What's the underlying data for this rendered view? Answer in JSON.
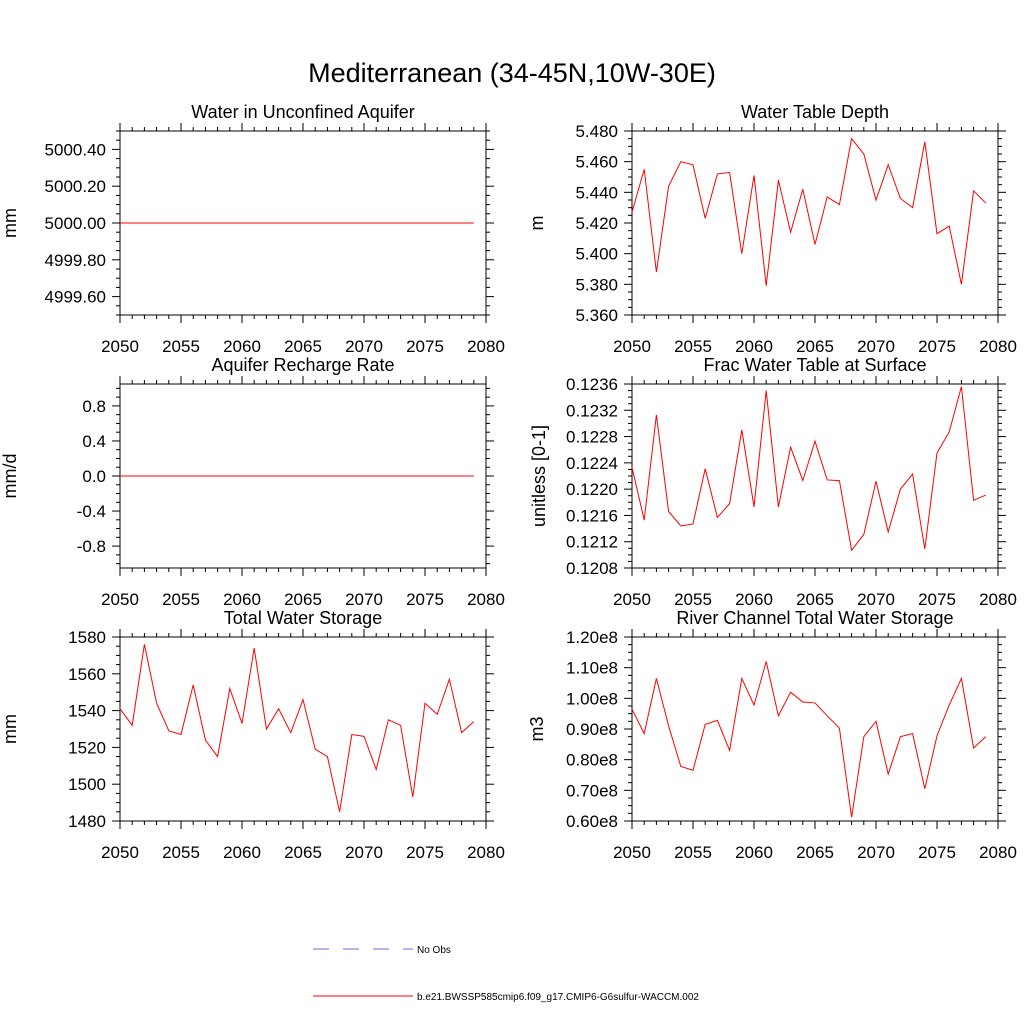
{
  "figure_title": "Mediterranean (34-45N,10W-30E)",
  "colors": {
    "model": "#ff0000",
    "obs": "#6a6acd",
    "axis": "#000000"
  },
  "legend": {
    "obs_label": "No Obs",
    "model_label": "b.e21.BWSSP585cmip6.f09_g17.CMIP6-G6sulfur-WACCM.002"
  },
  "chart_data": [
    {
      "type": "line",
      "title": "Water in Unconfined Aquifer",
      "ylabel": "mm",
      "xlim": [
        2050,
        2080
      ],
      "ylim": [
        4999.5,
        5000.5
      ],
      "xticks": [
        2050,
        2055,
        2060,
        2065,
        2070,
        2075,
        2080
      ],
      "yticks": [
        4999.6,
        4999.8,
        5000.0,
        5000.2,
        5000.4
      ],
      "ytick_labels": [
        "4999.60",
        "4999.80",
        "5000.00",
        "5000.20",
        "5000.40"
      ],
      "x": [
        2050,
        2051,
        2052,
        2053,
        2054,
        2055,
        2056,
        2057,
        2058,
        2059,
        2060,
        2061,
        2062,
        2063,
        2064,
        2065,
        2066,
        2067,
        2068,
        2069,
        2070,
        2071,
        2072,
        2073,
        2074,
        2075,
        2076,
        2077,
        2078,
        2079
      ],
      "series": [
        {
          "values": [
            5000,
            5000,
            5000,
            5000,
            5000,
            5000,
            5000,
            5000,
            5000,
            5000,
            5000,
            5000,
            5000,
            5000,
            5000,
            5000,
            5000,
            5000,
            5000,
            5000,
            5000,
            5000,
            5000,
            5000,
            5000,
            5000,
            5000,
            5000,
            5000,
            5000
          ]
        }
      ]
    },
    {
      "type": "line",
      "title": "Water Table Depth",
      "ylabel": "m",
      "xlim": [
        2050,
        2080
      ],
      "ylim": [
        5.36,
        5.48
      ],
      "xticks": [
        2050,
        2055,
        2060,
        2065,
        2070,
        2075,
        2080
      ],
      "yticks": [
        5.36,
        5.38,
        5.4,
        5.42,
        5.44,
        5.46,
        5.48
      ],
      "ytick_labels": [
        "5.360",
        "5.380",
        "5.400",
        "5.420",
        "5.440",
        "5.460",
        "5.480"
      ],
      "x": [
        2050,
        2051,
        2052,
        2053,
        2054,
        2055,
        2056,
        2057,
        2058,
        2059,
        2060,
        2061,
        2062,
        2063,
        2064,
        2065,
        2066,
        2067,
        2068,
        2069,
        2070,
        2071,
        2072,
        2073,
        2074,
        2075,
        2076,
        2077,
        2078,
        2079
      ],
      "series": [
        {
          "values": [
            5.427,
            5.455,
            5.388,
            5.444,
            5.46,
            5.458,
            5.423,
            5.452,
            5.453,
            5.4,
            5.451,
            5.379,
            5.448,
            5.414,
            5.442,
            5.406,
            5.437,
            5.432,
            5.475,
            5.465,
            5.435,
            5.458,
            5.436,
            5.43,
            5.473,
            5.413,
            5.418,
            5.38,
            5.441,
            5.433
          ]
        }
      ]
    },
    {
      "type": "line",
      "title": "Aquifer Recharge Rate",
      "ylabel": "mm/d",
      "xlim": [
        2050,
        2080
      ],
      "ylim": [
        -1.05,
        1.05
      ],
      "xticks": [
        2050,
        2055,
        2060,
        2065,
        2070,
        2075,
        2080
      ],
      "yticks": [
        -0.8,
        -0.4,
        0.0,
        0.4,
        0.8
      ],
      "ytick_labels": [
        "-0.8",
        "-0.4",
        "0.0",
        "0.4",
        "0.8"
      ],
      "x": [
        2050,
        2051,
        2052,
        2053,
        2054,
        2055,
        2056,
        2057,
        2058,
        2059,
        2060,
        2061,
        2062,
        2063,
        2064,
        2065,
        2066,
        2067,
        2068,
        2069,
        2070,
        2071,
        2072,
        2073,
        2074,
        2075,
        2076,
        2077,
        2078,
        2079
      ],
      "series": [
        {
          "values": [
            0,
            0,
            0,
            0,
            0,
            0,
            0,
            0,
            0,
            0,
            0,
            0,
            0,
            0,
            0,
            0,
            0,
            0,
            0,
            0,
            0,
            0,
            0,
            0,
            0,
            0,
            0,
            0,
            0,
            0
          ]
        }
      ]
    },
    {
      "type": "line",
      "title": "Frac Water Table at Surface",
      "ylabel": "unitless [0-1]",
      "xlim": [
        2050,
        2080
      ],
      "ylim": [
        0.1208,
        0.1236
      ],
      "xticks": [
        2050,
        2055,
        2060,
        2065,
        2070,
        2075,
        2080
      ],
      "yticks": [
        0.1208,
        0.1212,
        0.1216,
        0.122,
        0.1224,
        0.1228,
        0.1232,
        0.1236
      ],
      "ytick_labels": [
        "0.1208",
        "0.1212",
        "0.1216",
        "0.1220",
        "0.1224",
        "0.1228",
        "0.1232",
        "0.1236"
      ],
      "x": [
        2050,
        2051,
        2052,
        2053,
        2054,
        2055,
        2056,
        2057,
        2058,
        2059,
        2060,
        2061,
        2062,
        2063,
        2064,
        2065,
        2066,
        2067,
        2068,
        2069,
        2070,
        2071,
        2072,
        2073,
        2074,
        2075,
        2076,
        2077,
        2078,
        2079
      ],
      "series": [
        {
          "values": [
            0.12233,
            0.12153,
            0.12313,
            0.12166,
            0.12144,
            0.12147,
            0.12231,
            0.12157,
            0.12178,
            0.1229,
            0.12173,
            0.1235,
            0.12173,
            0.12264,
            0.12213,
            0.12273,
            0.12214,
            0.12213,
            0.12107,
            0.12131,
            0.12212,
            0.12135,
            0.122,
            0.12223,
            0.12109,
            0.12255,
            0.12287,
            0.12356,
            0.12183,
            0.12191
          ]
        }
      ]
    },
    {
      "type": "line",
      "title": "Total Water Storage",
      "ylabel": "mm",
      "xlim": [
        2050,
        2080
      ],
      "ylim": [
        1480,
        1580
      ],
      "xticks": [
        2050,
        2055,
        2060,
        2065,
        2070,
        2075,
        2080
      ],
      "yticks": [
        1480,
        1500,
        1520,
        1540,
        1560,
        1580
      ],
      "ytick_labels": [
        "1480",
        "1500",
        "1520",
        "1540",
        "1560",
        "1580"
      ],
      "x": [
        2050,
        2051,
        2052,
        2053,
        2054,
        2055,
        2056,
        2057,
        2058,
        2059,
        2060,
        2061,
        2062,
        2063,
        2064,
        2065,
        2066,
        2067,
        2068,
        2069,
        2070,
        2071,
        2072,
        2073,
        2074,
        2075,
        2076,
        2077,
        2078,
        2079
      ],
      "series": [
        {
          "values": [
            1541,
            1532,
            1576,
            1544,
            1529,
            1527,
            1554,
            1524,
            1515,
            1552,
            1533,
            1574,
            1530,
            1541,
            1528,
            1546,
            1519,
            1515,
            1485,
            1527,
            1526,
            1508,
            1535,
            1532,
            1493,
            1544,
            1538,
            1557,
            1528,
            1534
          ]
        }
      ]
    },
    {
      "type": "line",
      "title": "River Channel Total Water Storage",
      "ylabel": "m3",
      "xlim": [
        2050,
        2080
      ],
      "ylim": [
        0.6,
        1.2
      ],
      "xticks": [
        2050,
        2055,
        2060,
        2065,
        2070,
        2075,
        2080
      ],
      "yticks": [
        0.6,
        0.7,
        0.8,
        0.9,
        1.0,
        1.1,
        1.2
      ],
      "ytick_labels": [
        "0.60e8",
        "0.70e8",
        "0.80e8",
        "0.90e8",
        "1.00e8",
        "1.10e8",
        "1.20e8"
      ],
      "x": [
        2050,
        2051,
        2052,
        2053,
        2054,
        2055,
        2056,
        2057,
        2058,
        2059,
        2060,
        2061,
        2062,
        2063,
        2064,
        2065,
        2066,
        2067,
        2068,
        2069,
        2070,
        2071,
        2072,
        2073,
        2074,
        2075,
        2076,
        2077,
        2078,
        2079
      ],
      "series": [
        {
          "values": [
            0.965,
            0.885,
            1.065,
            0.91,
            0.778,
            0.765,
            0.915,
            0.928,
            0.83,
            1.065,
            0.978,
            1.12,
            0.943,
            1.02,
            0.988,
            0.985,
            0.943,
            0.903,
            0.612,
            0.875,
            0.925,
            0.753,
            0.875,
            0.885,
            0.705,
            0.878,
            0.978,
            1.065,
            0.838,
            0.875
          ]
        }
      ]
    }
  ]
}
